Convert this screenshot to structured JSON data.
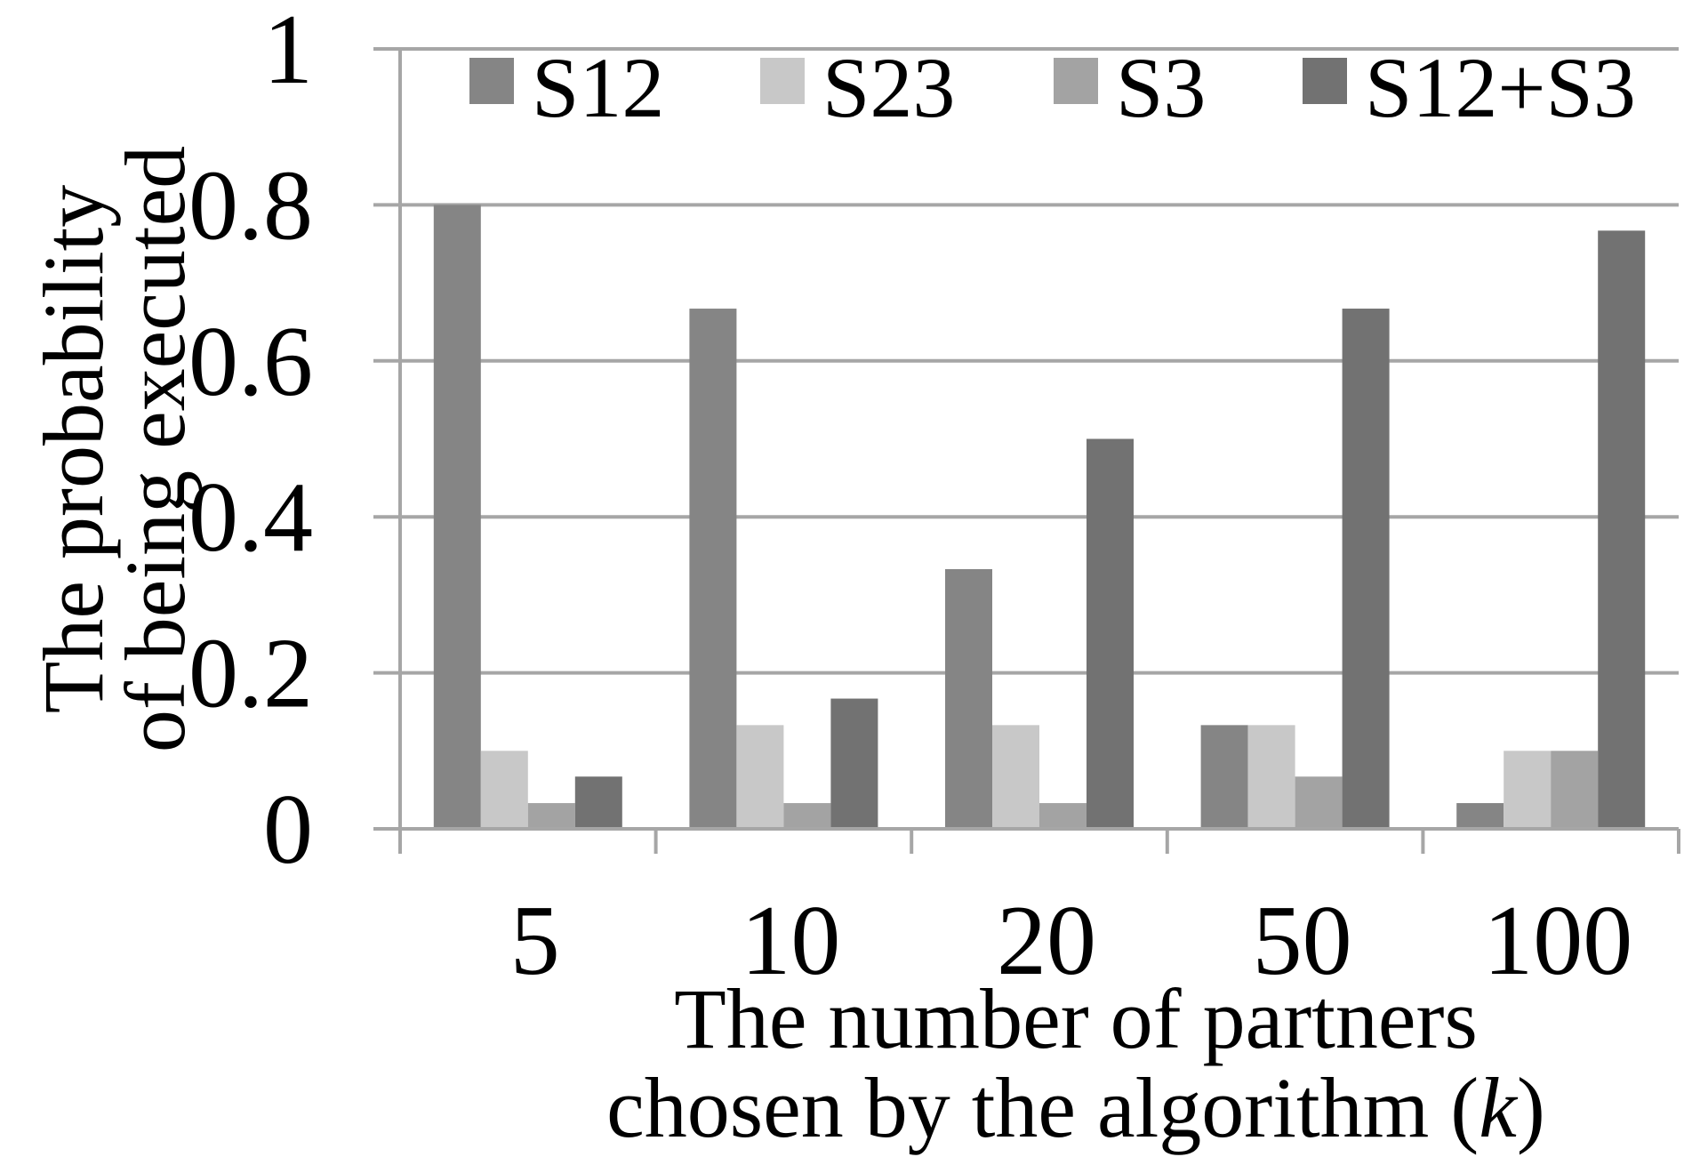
{
  "chart_data": {
    "type": "bar",
    "title": "",
    "xlabel": "The number of partners chosen by the algorithm (k)",
    "xlabel_lines": [
      {
        "parts": [
          {
            "text": "The number of partners",
            "italic": false
          }
        ]
      },
      {
        "parts": [
          {
            "text": "chosen by the algorithm (",
            "italic": false
          },
          {
            "text": "k",
            "italic": true
          },
          {
            "text": ")",
            "italic": false
          }
        ]
      }
    ],
    "ylabel": "The probability of being executed",
    "ylabel_lines": [
      "The probability",
      "of being executed"
    ],
    "categories": [
      "5",
      "10",
      "20",
      "50",
      "100"
    ],
    "ylim": [
      0,
      1
    ],
    "yticks": [
      0,
      0.2,
      0.4,
      0.6,
      0.8,
      1
    ],
    "ytick_labels": [
      "0",
      "0.2",
      "0.4",
      "0.6",
      "0.8",
      "1"
    ],
    "grid": true,
    "legend_position": "top",
    "series": [
      {
        "name": "S12",
        "color": "#858585",
        "values": [
          0.8,
          0.667,
          0.333,
          0.133,
          0.033
        ]
      },
      {
        "name": "S23",
        "color": "#c8c8c8",
        "values": [
          0.1,
          0.133,
          0.133,
          0.133,
          0.1
        ]
      },
      {
        "name": "S3",
        "color": "#a3a3a3",
        "values": [
          0.033,
          0.033,
          0.033,
          0.067,
          0.1
        ]
      },
      {
        "name": "S12+S3",
        "color": "#727272",
        "values": [
          0.067,
          0.167,
          0.5,
          0.667,
          0.767
        ]
      }
    ]
  }
}
